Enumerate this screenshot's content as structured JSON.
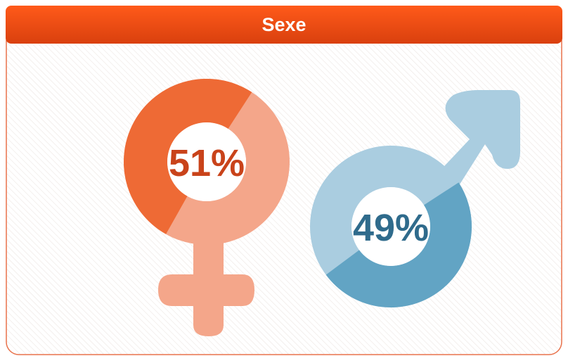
{
  "chart_data": {
    "type": "donut",
    "title": "Sexe",
    "values": [
      51,
      49
    ],
    "value_labels": [
      "51%",
      "49%"
    ],
    "colors": [
      "#ee6a35",
      "#62a4c4"
    ]
  }
}
